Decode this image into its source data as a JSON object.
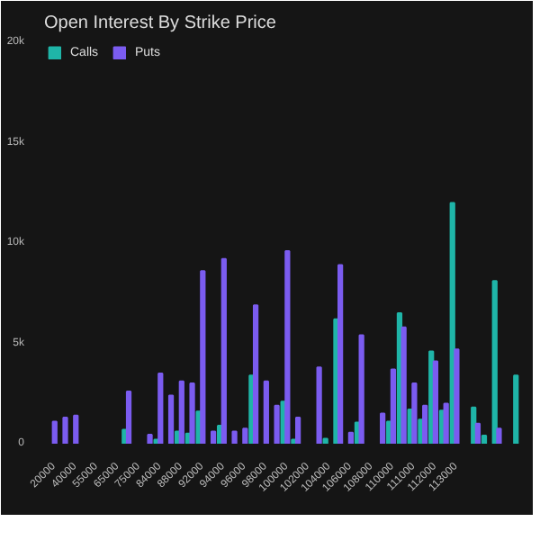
{
  "chart_data": {
    "type": "bar",
    "title": "Open Interest By Strike Price",
    "categories": [
      "20000",
      null,
      "40000",
      null,
      "55000",
      null,
      "65000",
      null,
      "75000",
      null,
      "84000",
      null,
      "88000",
      null,
      "92000",
      null,
      "94000",
      null,
      "96000",
      null,
      "98000",
      null,
      "100000",
      null,
      "102000",
      null,
      "104000",
      null,
      "106000",
      null,
      "108000",
      null,
      "110000",
      null,
      "111000",
      null,
      "112000",
      null,
      "113000",
      null,
      null,
      null,
      null,
      null,
      null
    ],
    "series": [
      {
        "name": "Calls",
        "color": "#1fb5a8",
        "values": [
          null,
          null,
          null,
          null,
          null,
          null,
          null,
          700,
          null,
          null,
          200,
          null,
          600,
          500,
          1600,
          null,
          900,
          null,
          null,
          3400,
          null,
          null,
          2100,
          200,
          null,
          null,
          250,
          6200,
          null,
          1050,
          null,
          null,
          1100,
          6500,
          1700,
          1200,
          4600,
          1650,
          12000,
          null,
          1800,
          400,
          8100,
          null,
          3400
        ]
      },
      {
        "name": "Puts",
        "color": "#7b5cf0",
        "values": [
          1100,
          1300,
          1400,
          null,
          null,
          null,
          null,
          2600,
          null,
          450,
          3500,
          2400,
          3100,
          3000,
          8600,
          600,
          9200,
          600,
          750,
          6900,
          3100,
          1900,
          9600,
          1300,
          null,
          3800,
          null,
          8900,
          550,
          5400,
          null,
          1500,
          3700,
          5800,
          3000,
          1900,
          4100,
          2000,
          4700,
          null,
          1000,
          null,
          750,
          null,
          null
        ]
      }
    ],
    "ylim": [
      0,
      20000
    ],
    "yticks": [
      0,
      {
        "value": 5000,
        "label": "5k"
      },
      {
        "value": 10000,
        "label": "10k"
      },
      {
        "value": 15000,
        "label": "15k"
      },
      {
        "value": 20000,
        "label": "20k"
      }
    ],
    "grid": false,
    "legend": "top left"
  }
}
